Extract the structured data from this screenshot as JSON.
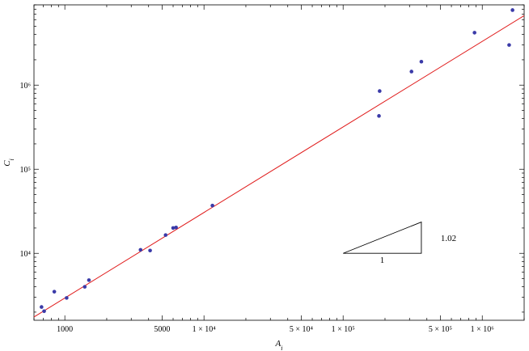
{
  "chart_data": {
    "type": "scatter",
    "xlabel": "A_i",
    "ylabel": "C_i",
    "x_scale": "log",
    "y_scale": "log",
    "xlim": [
      600,
      2000000
    ],
    "ylim": [
      1600,
      9000000
    ],
    "x_ticks": [
      {
        "value": 1000,
        "label": "1000"
      },
      {
        "value": 5000,
        "label": "5000"
      },
      {
        "value": 10000,
        "label": "1 × 10⁴"
      },
      {
        "value": 50000,
        "label": "5 × 10⁴"
      },
      {
        "value": 100000,
        "label": "1 × 10⁵"
      },
      {
        "value": 500000,
        "label": "5 × 10⁵"
      },
      {
        "value": 1000000,
        "label": "1 × 10⁶"
      }
    ],
    "y_ticks": [
      {
        "value": 10000,
        "label": "10⁴"
      },
      {
        "value": 100000,
        "label": "10⁵"
      },
      {
        "value": 1000000,
        "label": "10⁶"
      }
    ],
    "series": [
      {
        "type": "scatter",
        "color": "#3a3aa8",
        "points": [
          {
            "x": 680,
            "y": 2300
          },
          {
            "x": 710,
            "y": 2050
          },
          {
            "x": 840,
            "y": 3500
          },
          {
            "x": 1030,
            "y": 2950
          },
          {
            "x": 1390,
            "y": 4000
          },
          {
            "x": 1490,
            "y": 4800
          },
          {
            "x": 3500,
            "y": 11000
          },
          {
            "x": 4100,
            "y": 10800
          },
          {
            "x": 5300,
            "y": 16500
          },
          {
            "x": 6000,
            "y": 20000
          },
          {
            "x": 6300,
            "y": 20300
          },
          {
            "x": 11500,
            "y": 37000
          },
          {
            "x": 183000,
            "y": 850000
          },
          {
            "x": 181000,
            "y": 430000
          },
          {
            "x": 310000,
            "y": 1450000
          },
          {
            "x": 365000,
            "y": 1900000
          },
          {
            "x": 880000,
            "y": 4200000
          },
          {
            "x": 1560000,
            "y": 3000000
          },
          {
            "x": 1650000,
            "y": 7800000
          }
        ]
      },
      {
        "type": "line",
        "color": "#e01b1b",
        "fit_exponent": 1.02,
        "points": [
          {
            "x": 600,
            "y": 1750
          },
          {
            "x": 2000000,
            "y": 6700000
          }
        ]
      }
    ],
    "slope_triangle": {
      "label_horizontal": "1",
      "label_vertical": "1.02",
      "x_start": 100000,
      "x_end": 365000,
      "y_base": 10000
    },
    "grid": false,
    "frame": true
  }
}
